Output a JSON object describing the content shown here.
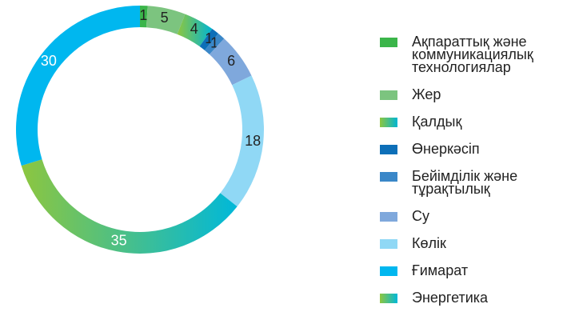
{
  "chart_data": {
    "type": "donut",
    "categories": [
      "Ақпараттық және коммуникациялық технологиялар",
      "Жер",
      "Қалдық",
      "Өнеркәсіп",
      "Бейімділік және тұрақтылық",
      "Су",
      "Көлік",
      "Ғимарат",
      "Энергетика"
    ],
    "values": [
      1,
      5,
      4,
      1,
      1,
      6,
      18,
      30,
      35
    ],
    "colors": [
      "#3bb54a",
      "#7cc47f",
      [
        "#8dc63f",
        "#00b5d3"
      ],
      "#0d6fb8",
      "#3a87c8",
      "#7fa8dc",
      "#90d8f5",
      "#00b7ef",
      [
        "#8dc63f",
        "#00b8d9"
      ]
    ],
    "legend": "right"
  }
}
